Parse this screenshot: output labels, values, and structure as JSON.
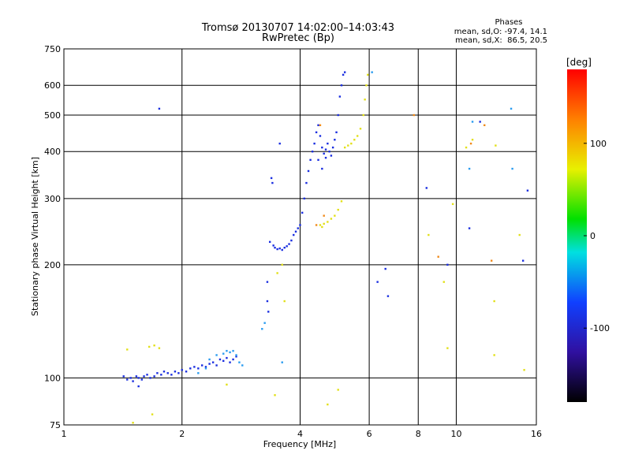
{
  "chart_data": {
    "type": "scatter",
    "title": "Tromsø 20130707 14:02:00–14:03:43",
    "subtitle": "RwPretec (Bp)",
    "info": {
      "heading": "Phases",
      "line1": "mean, sd,O: -97.4, 14.1",
      "line2": "mean, sd,X:  86.5, 20.5"
    },
    "xlabel": "Frequency [MHz]",
    "ylabel": "Stationary phase Virtual Height [km]",
    "x_scale": "log",
    "y_scale": "log",
    "xlim": [
      1,
      16
    ],
    "ylim": [
      75,
      750
    ],
    "x_ticks": [
      1,
      2,
      4,
      6,
      8,
      10,
      16
    ],
    "y_ticks": [
      75,
      100,
      200,
      300,
      400,
      500,
      600,
      750
    ],
    "grid": true,
    "colorbar": {
      "label": "[deg]",
      "range": [
        -180,
        180
      ],
      "ticks": [
        100,
        0,
        -100
      ]
    },
    "series": [
      {
        "mode": "O",
        "color": "#1a2ee0",
        "points": [
          [
            1.42,
            101
          ],
          [
            1.45,
            99
          ],
          [
            1.48,
            100
          ],
          [
            1.5,
            98
          ],
          [
            1.53,
            101
          ],
          [
            1.55,
            100
          ],
          [
            1.58,
            99
          ],
          [
            1.6,
            101
          ],
          [
            1.63,
            102
          ],
          [
            1.66,
            100
          ],
          [
            1.7,
            101
          ],
          [
            1.73,
            103
          ],
          [
            1.77,
            102
          ],
          [
            1.8,
            104
          ],
          [
            1.84,
            103
          ],
          [
            1.88,
            102
          ],
          [
            1.92,
            104
          ],
          [
            1.96,
            103
          ],
          [
            2.0,
            105
          ],
          [
            2.05,
            104
          ],
          [
            2.1,
            106
          ],
          [
            2.15,
            107
          ],
          [
            2.2,
            106
          ],
          [
            2.25,
            108
          ],
          [
            2.3,
            107
          ],
          [
            2.35,
            109
          ],
          [
            2.4,
            110
          ],
          [
            2.45,
            108
          ],
          [
            2.5,
            112
          ],
          [
            2.55,
            111
          ],
          [
            2.6,
            113
          ],
          [
            2.65,
            110
          ],
          [
            2.7,
            112
          ],
          [
            2.75,
            114
          ],
          [
            3.3,
            180
          ],
          [
            3.3,
            160
          ],
          [
            3.32,
            150
          ],
          [
            3.35,
            230
          ],
          [
            3.38,
            340
          ],
          [
            3.4,
            330
          ],
          [
            3.42,
            225
          ],
          [
            3.45,
            222
          ],
          [
            3.5,
            220
          ],
          [
            3.55,
            221
          ],
          [
            3.6,
            219
          ],
          [
            3.65,
            222
          ],
          [
            3.7,
            224
          ],
          [
            3.75,
            227
          ],
          [
            3.8,
            232
          ],
          [
            3.85,
            240
          ],
          [
            3.9,
            245
          ],
          [
            3.95,
            250
          ],
          [
            4.0,
            255
          ],
          [
            4.05,
            275
          ],
          [
            4.1,
            300
          ],
          [
            4.15,
            330
          ],
          [
            4.2,
            355
          ],
          [
            4.25,
            380
          ],
          [
            4.3,
            400
          ],
          [
            4.35,
            420
          ],
          [
            4.4,
            450
          ],
          [
            4.45,
            470
          ],
          [
            4.5,
            440
          ],
          [
            4.55,
            410
          ],
          [
            4.6,
            395
          ],
          [
            4.65,
            405
          ],
          [
            4.7,
            420
          ],
          [
            4.75,
            400
          ],
          [
            4.8,
            390
          ],
          [
            4.85,
            410
          ],
          [
            4.9,
            430
          ],
          [
            4.95,
            450
          ],
          [
            5.0,
            500
          ],
          [
            5.05,
            560
          ],
          [
            5.1,
            600
          ],
          [
            5.15,
            640
          ],
          [
            5.2,
            650
          ],
          [
            4.45,
            380
          ],
          [
            4.55,
            360
          ],
          [
            4.65,
            385
          ],
          [
            1.75,
            520
          ],
          [
            3.55,
            420
          ],
          [
            6.3,
            180
          ],
          [
            6.6,
            195
          ],
          [
            6.7,
            165
          ],
          [
            8.4,
            320
          ],
          [
            9.5,
            200
          ],
          [
            10.8,
            250
          ],
          [
            11.5,
            480
          ],
          [
            15.2,
            315
          ],
          [
            14.8,
            205
          ],
          [
            1.55,
            95
          ]
        ]
      },
      {
        "mode": "O-light",
        "color": "#2a9cf0",
        "points": [
          [
            2.35,
            112
          ],
          [
            2.45,
            115
          ],
          [
            2.55,
            116
          ],
          [
            2.6,
            118
          ],
          [
            2.65,
            117
          ],
          [
            2.7,
            118
          ],
          [
            2.75,
            115
          ],
          [
            2.8,
            110
          ],
          [
            2.85,
            108
          ],
          [
            2.2,
            103
          ],
          [
            2.3,
            106
          ],
          [
            3.2,
            135
          ],
          [
            3.25,
            140
          ],
          [
            3.6,
            110
          ],
          [
            10.8,
            360
          ],
          [
            11.0,
            480
          ],
          [
            13.8,
            520
          ],
          [
            13.9,
            360
          ],
          [
            6.1,
            650
          ]
        ]
      },
      {
        "mode": "X",
        "color": "#e2e01a",
        "points": [
          [
            4.5,
            255
          ],
          [
            4.55,
            252
          ],
          [
            4.6,
            257
          ],
          [
            4.7,
            260
          ],
          [
            4.8,
            265
          ],
          [
            4.9,
            270
          ],
          [
            5.0,
            280
          ],
          [
            5.1,
            295
          ],
          [
            5.2,
            410
          ],
          [
            5.3,
            415
          ],
          [
            5.4,
            420
          ],
          [
            5.5,
            430
          ],
          [
            5.6,
            440
          ],
          [
            5.7,
            460
          ],
          [
            5.8,
            500
          ],
          [
            5.85,
            550
          ],
          [
            5.9,
            600
          ],
          [
            5.95,
            640
          ],
          [
            3.5,
            190
          ],
          [
            3.6,
            200
          ],
          [
            3.65,
            160
          ],
          [
            3.45,
            90
          ],
          [
            4.7,
            85
          ],
          [
            5.0,
            93
          ],
          [
            1.45,
            119
          ],
          [
            1.65,
            121
          ],
          [
            1.7,
            122
          ],
          [
            1.75,
            120
          ],
          [
            8.5,
            240
          ],
          [
            9.3,
            180
          ],
          [
            9.5,
            120
          ],
          [
            9.8,
            290
          ],
          [
            10.6,
            410
          ],
          [
            11.0,
            430
          ],
          [
            12.5,
            160
          ],
          [
            12.5,
            115
          ],
          [
            12.6,
            415
          ],
          [
            14.5,
            240
          ],
          [
            14.9,
            105
          ],
          [
            2.6,
            96
          ],
          [
            1.5,
            76
          ],
          [
            1.68,
            80
          ]
        ]
      },
      {
        "mode": "X-orange",
        "color": "#f08a1a",
        "points": [
          [
            4.4,
            255
          ],
          [
            4.6,
            270
          ],
          [
            4.5,
            470
          ],
          [
            9.0,
            210
          ],
          [
            10.9,
            420
          ],
          [
            12.3,
            205
          ],
          [
            11.8,
            470
          ],
          [
            7.8,
            500
          ]
        ]
      }
    ]
  }
}
